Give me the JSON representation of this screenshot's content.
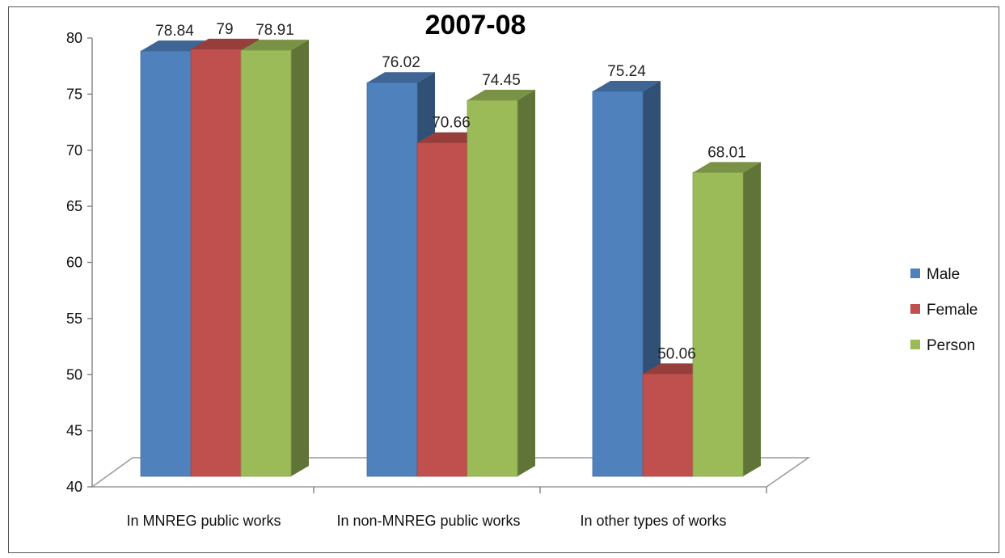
{
  "chart_data": {
    "type": "bar",
    "title": "2007-08",
    "categories": [
      "In MNREG public works",
      "In non-MNREG public works",
      "In other types of works"
    ],
    "series": [
      {
        "name": "Male",
        "values": [
          78.84,
          76.02,
          75.24
        ],
        "labels": [
          "78.84",
          "76.02",
          "75.24"
        ],
        "color": "#4F81BD"
      },
      {
        "name": "Female",
        "values": [
          79,
          70.66,
          50.06
        ],
        "labels": [
          "79",
          "70.66",
          "50.06"
        ],
        "color": "#C0504D"
      },
      {
        "name": "Person",
        "values": [
          78.91,
          74.45,
          68.01
        ],
        "labels": [
          "78.91",
          "74.45",
          "68.01"
        ],
        "color": "#9BBB59"
      }
    ],
    "ylim": [
      40,
      80
    ],
    "yticks": [
      "40",
      "45",
      "50",
      "55",
      "60",
      "65",
      "70",
      "75",
      "80"
    ],
    "xlabel": "",
    "ylabel": "",
    "grid": false,
    "legend_position": "right",
    "style": "3d-clustered-column"
  }
}
